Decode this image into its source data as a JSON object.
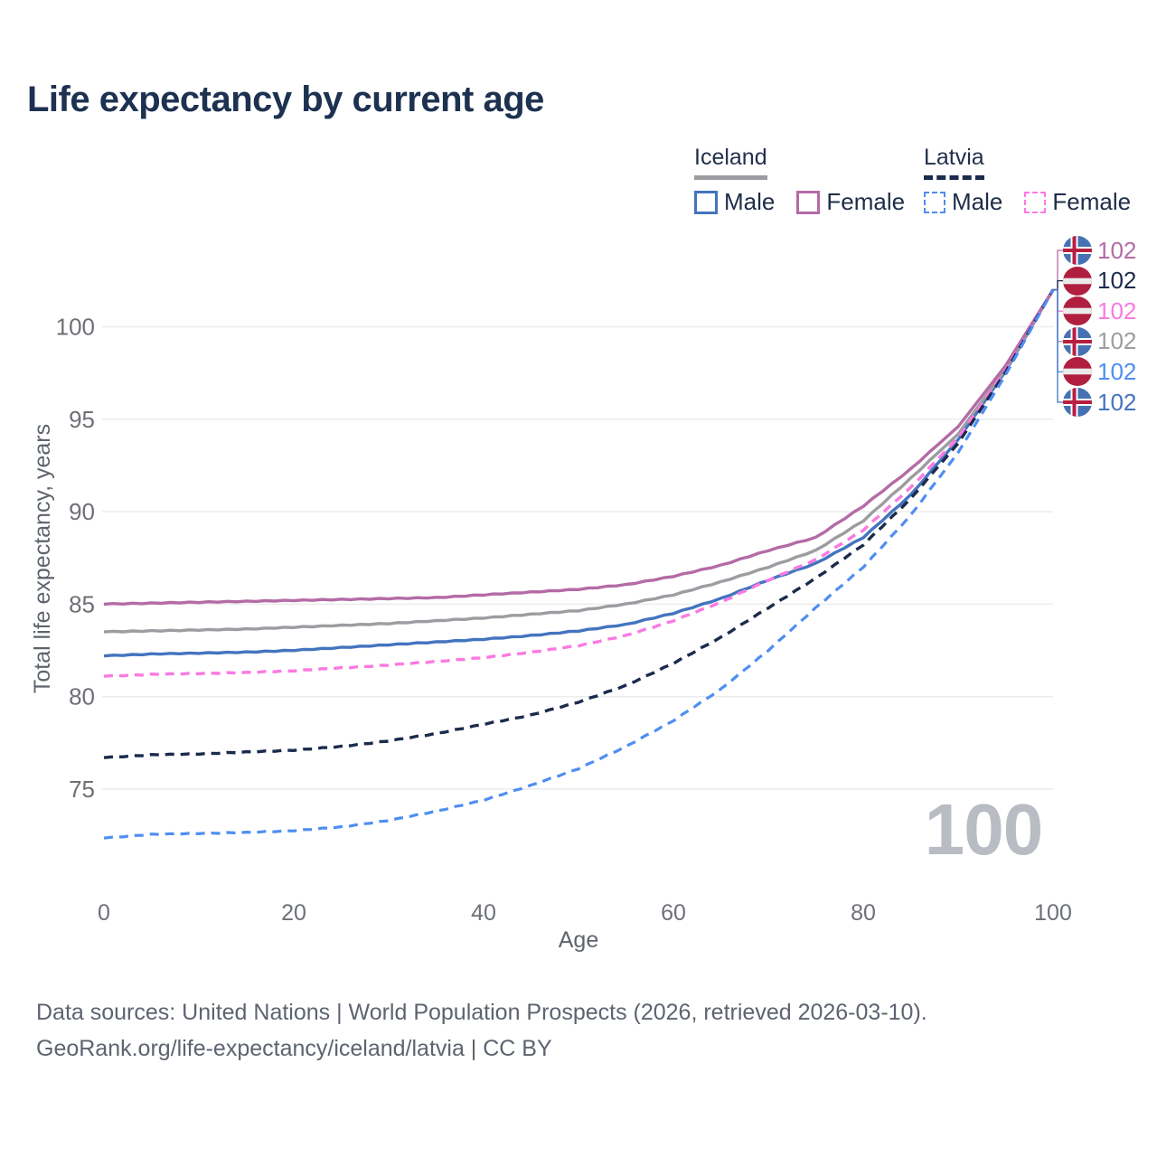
{
  "page": {
    "title": "Life expectancy by current age"
  },
  "legend": {
    "groups": [
      {
        "country": "Iceland",
        "line_style": "solid",
        "line_color": "#9b9da1",
        "items": [
          {
            "label": "Male",
            "color": "#4374bf",
            "dashed": false
          },
          {
            "label": "Female",
            "color": "#b46ba6",
            "dashed": false
          }
        ]
      },
      {
        "country": "Latvia",
        "line_style": "dashed",
        "line_color": "#1b2b4d",
        "items": [
          {
            "label": "Male",
            "color": "#4e8ef2",
            "dashed": true
          },
          {
            "label": "Female",
            "color": "#fa7ae1",
            "dashed": true
          }
        ]
      }
    ]
  },
  "chart_data": {
    "type": "line",
    "title": "Life expectancy by current age",
    "xlabel": "Age",
    "ylabel": "Total life expectancy, years",
    "x": [
      0,
      5,
      10,
      15,
      20,
      25,
      30,
      35,
      40,
      45,
      50,
      55,
      60,
      65,
      70,
      75,
      80,
      85,
      90,
      95,
      100
    ],
    "xticks": [
      0,
      20,
      40,
      60,
      80,
      100
    ],
    "yticks": [
      75,
      80,
      85,
      90,
      95,
      100
    ],
    "xlim": [
      0,
      100
    ],
    "ylim": [
      71.5,
      103
    ],
    "grid": "horizontal",
    "grid_color": "#ececee",
    "axis_text_color": "#6d7176",
    "watermark": "100",
    "series": [
      {
        "name": "Iceland Female",
        "country": "iceland",
        "style": "solid",
        "color": "#b46ba6",
        "width": 3.4,
        "end_label": "102",
        "values": [
          85.0,
          85.05,
          85.1,
          85.15,
          85.2,
          85.25,
          85.3,
          85.35,
          85.5,
          85.65,
          85.8,
          86.05,
          86.5,
          87.1,
          87.9,
          88.6,
          90.3,
          92.3,
          94.6,
          97.9,
          102
        ]
      },
      {
        "name": "Iceland Total",
        "country": "iceland",
        "style": "solid",
        "color": "#9b9da1",
        "width": 3.4,
        "end_label": "102",
        "values": [
          83.5,
          83.55,
          83.6,
          83.65,
          83.75,
          83.85,
          83.95,
          84.1,
          84.25,
          84.45,
          84.65,
          85.0,
          85.5,
          86.2,
          87.0,
          87.9,
          89.5,
          91.8,
          94.2,
          97.7,
          102
        ]
      },
      {
        "name": "Iceland Male",
        "country": "iceland",
        "style": "solid",
        "color": "#4374bf",
        "width": 3.4,
        "end_label": "102",
        "values": [
          82.2,
          82.3,
          82.35,
          82.4,
          82.5,
          82.65,
          82.8,
          82.95,
          83.1,
          83.3,
          83.55,
          83.9,
          84.5,
          85.3,
          86.3,
          87.2,
          88.6,
          90.9,
          93.9,
          97.6,
          102
        ]
      },
      {
        "name": "Latvia Female",
        "country": "latvia",
        "style": "dashed",
        "color": "#fa7ae1",
        "width": 3.4,
        "end_label": "102",
        "values": [
          81.1,
          81.2,
          81.25,
          81.3,
          81.4,
          81.55,
          81.7,
          81.9,
          82.1,
          82.4,
          82.75,
          83.3,
          84.1,
          85.1,
          86.3,
          87.4,
          89.0,
          91.3,
          94.0,
          97.65,
          102
        ]
      },
      {
        "name": "Latvia Total",
        "country": "latvia",
        "style": "dashed",
        "color": "#1b2b4d",
        "width": 3.4,
        "end_label": "102",
        "values": [
          76.7,
          76.85,
          76.9,
          77.0,
          77.1,
          77.3,
          77.6,
          78.0,
          78.5,
          79.0,
          79.7,
          80.6,
          81.8,
          83.2,
          84.8,
          86.4,
          88.2,
          90.7,
          93.7,
          97.55,
          102
        ]
      },
      {
        "name": "Latvia Male",
        "country": "latvia",
        "style": "dashed",
        "color": "#4e8ef2",
        "width": 3.2,
        "end_label": "102",
        "values": [
          72.35,
          72.55,
          72.6,
          72.65,
          72.75,
          72.95,
          73.3,
          73.8,
          74.4,
          75.2,
          76.1,
          77.3,
          78.7,
          80.4,
          82.5,
          84.8,
          87.0,
          89.8,
          93.2,
          97.4,
          102
        ]
      }
    ],
    "end_labels": [
      {
        "series": "Iceland Female",
        "country": "iceland",
        "value": "102",
        "color": "#b46ba6"
      },
      {
        "series": "Latvia Total",
        "country": "latvia",
        "value": "102",
        "color": "#1b2b4d"
      },
      {
        "series": "Latvia Female",
        "country": "latvia",
        "value": "102",
        "color": "#fa7ae1"
      },
      {
        "series": "Iceland Total",
        "country": "iceland",
        "value": "102",
        "color": "#9b9da1"
      },
      {
        "series": "Latvia Male",
        "country": "latvia",
        "value": "102",
        "color": "#4e8ef2"
      },
      {
        "series": "Iceland Male",
        "country": "iceland",
        "value": "102",
        "color": "#4374bf"
      }
    ],
    "flag_colors": {
      "iceland_blue": "#4672b4",
      "cross_red": "#b71f40",
      "latvia_red": "#b01f40",
      "stripe_white": "#ebebeb"
    }
  },
  "footer": {
    "line1": "Data sources: United Nations | World Population Prospects (2026, retrieved 2026-03-10).",
    "line2": "GeoRank.org/life-expectancy/iceland/latvia | CC BY"
  }
}
